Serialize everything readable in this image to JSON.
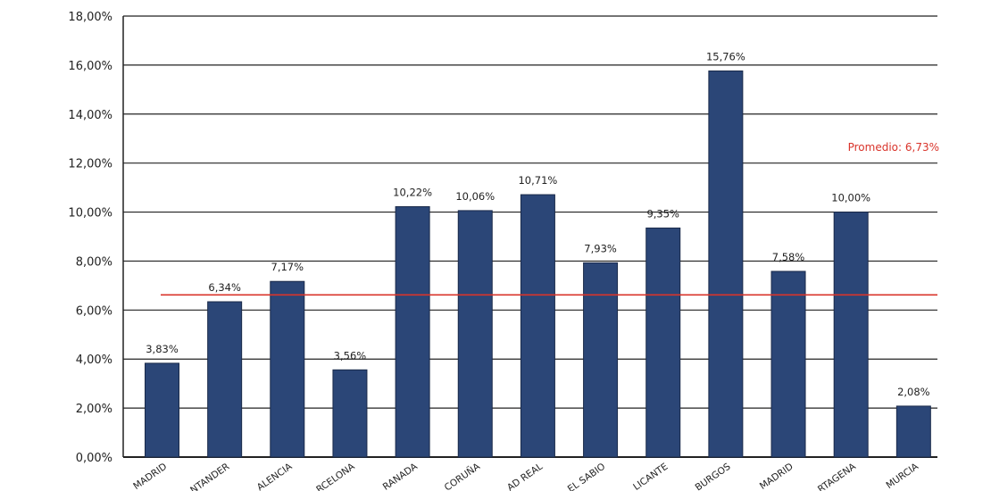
{
  "chart_data": {
    "type": "bar",
    "title": "",
    "xlabel": "",
    "ylabel": "",
    "ylim": [
      0,
      18
    ],
    "yticks": [
      "0,00%",
      "2,00%",
      "4,00%",
      "6,00%",
      "8,00%",
      "10,00%",
      "12,00%",
      "14,00%",
      "16,00%",
      "18,00%"
    ],
    "grid": true,
    "categories": [
      "MADRID",
      "NTANDER",
      "ALENCIA",
      "RCELONA",
      "RANADA",
      "CORUÑA",
      "AD REAL",
      "EL SABIO",
      "LICANTE",
      "BURGOS",
      "MADRID",
      "RTAGENA",
      "MURCIA"
    ],
    "values": [
      3.83,
      6.34,
      7.17,
      3.56,
      10.22,
      10.06,
      10.71,
      7.93,
      9.35,
      15.76,
      7.58,
      10.0,
      2.08
    ],
    "data_labels": [
      "3,83%",
      "6,34%",
      "7,17%",
      "3,56%",
      "10,22%",
      "10,06%",
      "10,71%",
      "7,93%",
      "9,35%",
      "15,76%",
      "7,58%",
      "10,00%",
      "2,08%"
    ],
    "average": {
      "label": "Promedio: 6,73%",
      "value": 6.73
    },
    "colors": {
      "bar": "#2b4677",
      "average_line": "#d9342b",
      "grid": "#222222"
    }
  }
}
